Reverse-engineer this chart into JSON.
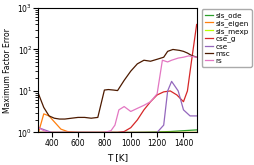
{
  "title": "",
  "xlabel": "T [K]",
  "ylabel": "Maximum Factor Error",
  "xlim": [
    300,
    1500
  ],
  "series": {
    "sls_ode": {
      "color": "#2ca02c",
      "T": [
        300,
        400,
        500,
        600,
        700,
        800,
        900,
        1000,
        1100,
        1200,
        1300,
        1400,
        1500
      ],
      "vals": [
        1.0,
        1.0,
        1.0,
        1.0,
        1.0,
        1.0,
        1.0,
        1.0,
        1.01,
        1.03,
        1.05,
        1.1,
        1.15
      ]
    },
    "sls_eigen": {
      "color": "#ff7f0e",
      "T": [
        300,
        340,
        380,
        420,
        470,
        520,
        600,
        700,
        800,
        900,
        1000,
        1100,
        1200,
        1300,
        1400,
        1500
      ],
      "vals": [
        1.0,
        2.8,
        2.5,
        1.8,
        1.2,
        1.05,
        1.0,
        1.0,
        1.0,
        1.0,
        1.0,
        1.0,
        1.0,
        1.0,
        1.0,
        1.0
      ]
    },
    "sls_mexp": {
      "color": "#bcff00",
      "T": [
        300,
        400,
        500,
        600,
        700,
        800,
        900,
        1000,
        1100,
        1200,
        1300,
        1400,
        1500
      ],
      "vals": [
        1.0,
        1.0,
        1.0,
        1.0,
        1.0,
        1.0,
        1.0,
        1.0,
        1.0,
        1.0,
        1.0,
        1.0,
        1.0
      ]
    },
    "cse_g": {
      "color": "#d62728",
      "T": [
        300,
        400,
        500,
        600,
        700,
        800,
        900,
        950,
        1000,
        1050,
        1100,
        1150,
        1200,
        1250,
        1300,
        1350,
        1400,
        1430,
        1460,
        1500
      ],
      "vals": [
        1.0,
        1.0,
        1.0,
        1.0,
        1.0,
        1.0,
        1.0,
        1.05,
        1.3,
        2.0,
        3.5,
        5.5,
        8.0,
        9.5,
        10.0,
        8.0,
        5.5,
        10.0,
        50.0,
        400.0
      ]
    },
    "cse": {
      "color": "#9467bd",
      "T": [
        300,
        400,
        500,
        600,
        700,
        800,
        900,
        1000,
        1100,
        1150,
        1200,
        1250,
        1280,
        1310,
        1360,
        1400,
        1450,
        1500
      ],
      "vals": [
        1.3,
        1.0,
        1.0,
        1.0,
        1.0,
        1.0,
        1.0,
        1.0,
        1.0,
        1.0,
        1.0,
        1.5,
        10.0,
        17.0,
        10.0,
        3.5,
        2.5,
        2.5
      ]
    },
    "msc": {
      "color": "#4d1a00",
      "T": [
        300,
        340,
        380,
        420,
        460,
        500,
        550,
        600,
        650,
        700,
        750,
        800,
        830,
        870,
        900,
        950,
        1000,
        1050,
        1100,
        1150,
        1200,
        1250,
        1280,
        1320,
        1370,
        1400,
        1430,
        1460,
        1500
      ],
      "vals": [
        8.5,
        4.0,
        2.5,
        2.2,
        2.1,
        2.1,
        2.2,
        2.3,
        2.3,
        2.2,
        2.3,
        10.5,
        10.8,
        10.5,
        10.2,
        18.0,
        30.0,
        45.0,
        55.0,
        52.0,
        58.0,
        65.0,
        90.0,
        100.0,
        95.0,
        90.0,
        82.0,
        72.0,
        65.0
      ]
    },
    "rs": {
      "color": "#e377c2",
      "T": [
        300,
        340,
        380,
        420,
        460,
        500,
        600,
        700,
        800,
        850,
        880,
        910,
        950,
        1000,
        1050,
        1100,
        1150,
        1200,
        1240,
        1280,
        1310,
        1360,
        1400,
        1440,
        1500
      ],
      "vals": [
        1.3,
        1.1,
        1.0,
        1.0,
        1.0,
        1.0,
        1.0,
        1.0,
        1.0,
        1.1,
        1.5,
        3.5,
        4.2,
        3.2,
        3.8,
        4.5,
        5.5,
        8.5,
        55.0,
        50.0,
        55.0,
        62.0,
        65.0,
        70.0,
        65.0
      ]
    }
  },
  "legend_order": [
    "sls_ode",
    "sls_eigen",
    "sls_mexp",
    "cse_g",
    "cse",
    "msc",
    "rs"
  ],
  "legend_labels": [
    "sls_ode",
    "sls_eigen",
    "sls_mexp",
    "cse_g",
    "cse",
    "msc",
    "rs"
  ]
}
